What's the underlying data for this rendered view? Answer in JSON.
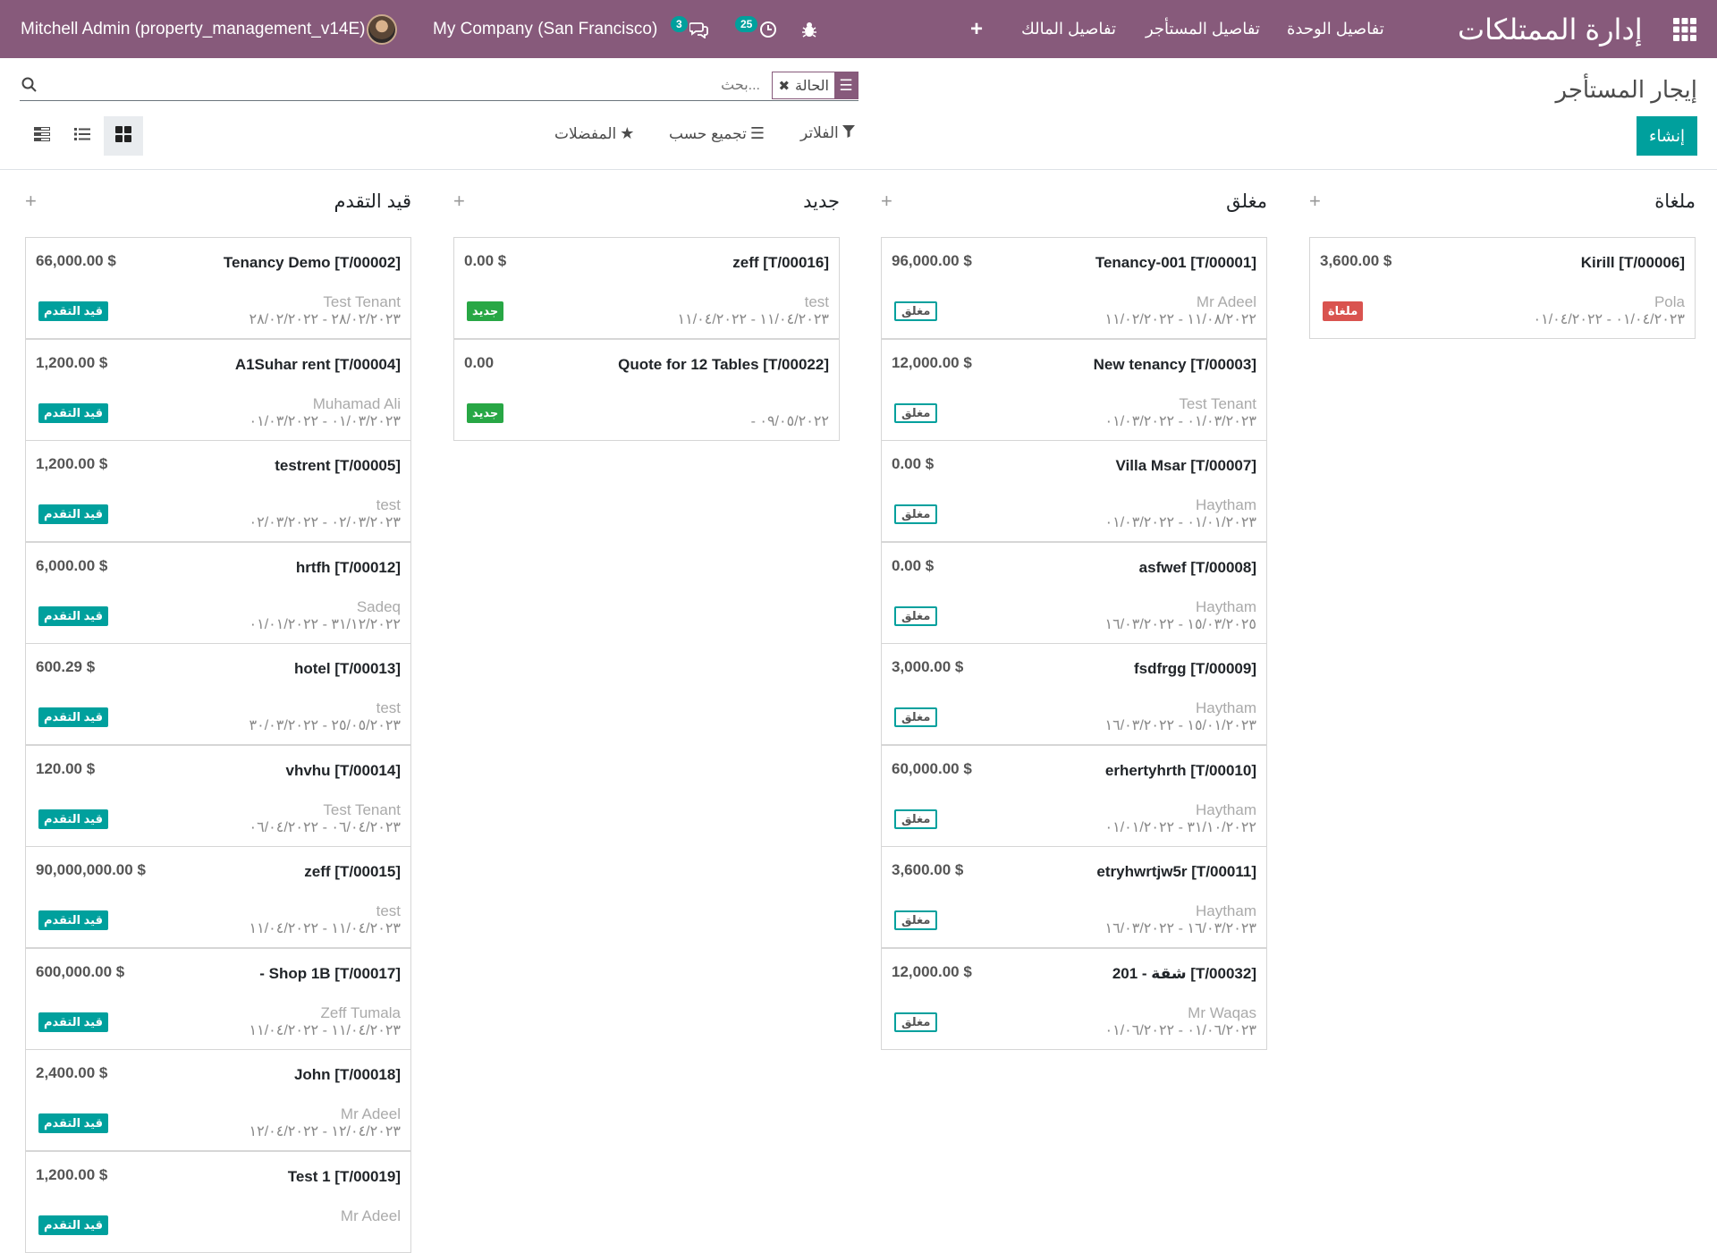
{
  "topbar": {
    "app_title": "إدارة الممتلكات",
    "nav": [
      "تفاصيل الوحدة",
      "تفاصيل المستأجر",
      "تفاصيل المالك"
    ],
    "user": "Mitchell Admin (property_management_v14E)",
    "company": "My Company (San Francisco)",
    "chat_count": "3",
    "activity_count": "25"
  },
  "control": {
    "breadcrumb": "إيجار المستأجر",
    "create_label": "إنشاء",
    "search_placeholder": "بحث...",
    "facet_label": "الحالة",
    "filters_label": "الفلاتر",
    "groupby_label": "تجميع حسب",
    "favorites_label": "المفضلات"
  },
  "columns": [
    {
      "title": "ملغاة",
      "cards": [
        {
          "name": "Kirill [T/00006]",
          "amount": "3,600.00 $",
          "tenant": "Pola",
          "dates": "٠١/٠٤/٢٠٢٣ - ٠١/٠٤/٢٠٢٢",
          "tag": "ملغاة",
          "tag_type": "cancel"
        }
      ]
    },
    {
      "title": "مغلق",
      "cards": [
        {
          "name": "Tenancy-001 [T/00001]",
          "amount": "96,000.00 $",
          "tenant": "Mr Adeel",
          "dates": "١١/٠٨/٢٠٢٢ - ١١/٠٢/٢٠٢٢",
          "tag": "مغلق",
          "tag_type": "closed"
        },
        {
          "name": "New tenancy [T/00003]",
          "amount": "12,000.00 $",
          "tenant": "Test Tenant",
          "dates": "٠١/٠٣/٢٠٢٣ - ٠١/٠٣/٢٠٢٢",
          "tag": "مغلق",
          "tag_type": "closed"
        },
        {
          "name": "Villa Msar [T/00007]",
          "amount": "0.00 $",
          "tenant": "Haytham",
          "dates": "٠١/٠١/٢٠٢٣ - ٠١/٠٣/٢٠٢٢",
          "tag": "مغلق",
          "tag_type": "closed"
        },
        {
          "name": "asfwef [T/00008]",
          "amount": "0.00 $",
          "tenant": "Haytham",
          "dates": "١٥/٠٣/٢٠٢٥ - ١٦/٠٣/٢٠٢٢",
          "tag": "مغلق",
          "tag_type": "closed"
        },
        {
          "name": "fsdfrgg [T/00009]",
          "amount": "3,000.00 $",
          "tenant": "Haytham",
          "dates": "١٥/٠١/٢٠٢٣ - ١٦/٠٣/٢٠٢٢",
          "tag": "مغلق",
          "tag_type": "closed"
        },
        {
          "name": "erhertyhrth [T/00010]",
          "amount": "60,000.00 $",
          "tenant": "Haytham",
          "dates": "٣١/١٠/٢٠٢٢ - ٠١/٠١/٢٠٢٢",
          "tag": "مغلق",
          "tag_type": "closed"
        },
        {
          "name": "etryhwrtjw5r [T/00011]",
          "amount": "3,600.00 $",
          "tenant": "Haytham",
          "dates": "١٦/٠٣/٢٠٢٣ - ١٦/٠٣/٢٠٢٢",
          "tag": "مغلق",
          "tag_type": "closed"
        },
        {
          "name": "201 - شقة [T/00032]",
          "amount": "12,000.00 $",
          "tenant": "Mr Waqas",
          "dates": "٠١/٠٦/٢٠٢٣ - ٠١/٠٦/٢٠٢٢",
          "tag": "مغلق",
          "tag_type": "closed"
        }
      ]
    },
    {
      "title": "جديد",
      "cards": [
        {
          "name": "zeff [T/00016]",
          "amount": "0.00 $",
          "tenant": "test",
          "dates": "١١/٠٤/٢٠٢٣ - ١١/٠٤/٢٠٢٢",
          "tag": "جديد",
          "tag_type": "new"
        },
        {
          "name": "Quote for 12 Tables [T/00022]",
          "amount": "0.00",
          "tenant": "",
          "dates": "- ٠٩/٠٥/٢٠٢٢",
          "tag": "جديد",
          "tag_type": "new"
        }
      ]
    },
    {
      "title": "قيد التقدم",
      "cards": [
        {
          "name": "Tenancy Demo [T/00002]",
          "amount": "66,000.00 $",
          "tenant": "Test Tenant",
          "dates": "٢٨/٠٢/٢٠٢٣ - ٢٨/٠٢/٢٠٢٢",
          "tag": "قيد التقدم",
          "tag_type": "progress"
        },
        {
          "name": "A1Suhar rent [T/00004]",
          "amount": "1,200.00 $",
          "tenant": "Muhamad Ali",
          "dates": "٠١/٠٣/٢٠٢٣ - ٠١/٠٣/٢٠٢٢",
          "tag": "قيد التقدم",
          "tag_type": "progress"
        },
        {
          "name": "testrent [T/00005]",
          "amount": "1,200.00 $",
          "tenant": "test",
          "dates": "٠٢/٠٣/٢٠٢٣ - ٠٢/٠٣/٢٠٢٢",
          "tag": "قيد التقدم",
          "tag_type": "progress"
        },
        {
          "name": "hrtfh [T/00012]",
          "amount": "6,000.00 $",
          "tenant": "Sadeq",
          "dates": "٣١/١٢/٢٠٢٢ - ٠١/٠١/٢٠٢٢",
          "tag": "قيد التقدم",
          "tag_type": "progress"
        },
        {
          "name": "hotel [T/00013]",
          "amount": "600.29 $",
          "tenant": "test",
          "dates": "٢٥/٠٥/٢٠٢٣ - ٣٠/٠٣/٢٠٢٢",
          "tag": "قيد التقدم",
          "tag_type": "progress"
        },
        {
          "name": "vhvhu [T/00014]",
          "amount": "120.00 $",
          "tenant": "Test Tenant",
          "dates": "٠٦/٠٤/٢٠٢٣ - ٠٦/٠٤/٢٠٢٢",
          "tag": "قيد التقدم",
          "tag_type": "progress"
        },
        {
          "name": "zeff [T/00015]",
          "amount": "90,000,000.00 $",
          "tenant": "test",
          "dates": "١١/٠٤/٢٠٢٣ - ١١/٠٤/٢٠٢٢",
          "tag": "قيد التقدم",
          "tag_type": "progress"
        },
        {
          "name": "- Shop 1B [T/00017]",
          "amount": "600,000.00 $",
          "tenant": "Zeff Tumala",
          "dates": "١١/٠٤/٢٠٢٣ - ١١/٠٤/٢٠٢٢",
          "tag": "قيد التقدم",
          "tag_type": "progress"
        },
        {
          "name": "John [T/00018]",
          "amount": "2,400.00 $",
          "tenant": "Mr Adeel",
          "dates": "١٢/٠٤/٢٠٢٣ - ١٢/٠٤/٢٠٢٢",
          "tag": "قيد التقدم",
          "tag_type": "progress"
        },
        {
          "name": "Test 1 [T/00019]",
          "amount": "1,200.00 $",
          "tenant": "Mr Adeel",
          "dates": "",
          "tag": "قيد التقدم",
          "tag_type": "progress"
        }
      ]
    }
  ]
}
